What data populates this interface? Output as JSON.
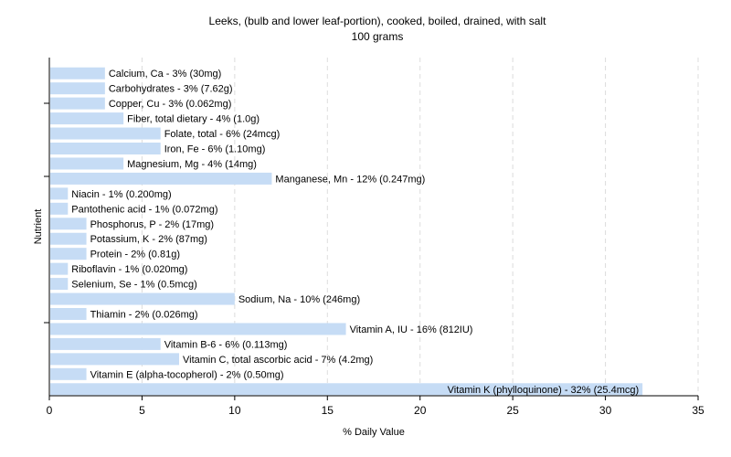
{
  "chart_data": {
    "type": "bar",
    "orientation": "horizontal",
    "title": "Leeks, (bulb and lower leaf-portion), cooked, boiled, drained, with salt",
    "subtitle": "100 grams",
    "xlabel": "% Daily Value",
    "ylabel": "Nutrient",
    "xlim": [
      0,
      35
    ],
    "xticks": [
      0,
      5,
      10,
      15,
      20,
      25,
      30,
      35
    ],
    "grid": true,
    "bar_color": "#c6dcf5",
    "categories": [
      "Calcium, Ca",
      "Carbohydrates",
      "Copper, Cu",
      "Fiber, total dietary",
      "Folate, total",
      "Iron, Fe",
      "Magnesium, Mg",
      "Manganese, Mn",
      "Niacin",
      "Pantothenic acid",
      "Phosphorus, P",
      "Potassium, K",
      "Protein",
      "Riboflavin",
      "Selenium, Se",
      "Sodium, Na",
      "Thiamin",
      "Vitamin A, IU",
      "Vitamin B-6",
      "Vitamin C, total ascorbic acid",
      "Vitamin E (alpha-tocopherol)",
      "Vitamin K (phylloquinone)"
    ],
    "values": [
      3,
      3,
      3,
      4,
      6,
      6,
      4,
      12,
      1,
      1,
      2,
      2,
      2,
      1,
      1,
      10,
      2,
      16,
      6,
      7,
      2,
      32
    ],
    "labels": [
      "Calcium, Ca - 3% (30mg)",
      "Carbohydrates - 3% (7.62g)",
      "Copper, Cu - 3% (0.062mg)",
      "Fiber, total dietary - 4% (1.0g)",
      "Folate, total - 6% (24mcg)",
      "Iron, Fe - 6% (1.10mg)",
      "Magnesium, Mg - 4% (14mg)",
      "Manganese, Mn - 12% (0.247mg)",
      "Niacin - 1% (0.200mg)",
      "Pantothenic acid - 1% (0.072mg)",
      "Phosphorus, P - 2% (17mg)",
      "Potassium, K - 2% (87mg)",
      "Protein - 2% (0.81g)",
      "Riboflavin - 1% (0.020mg)",
      "Selenium, Se - 1% (0.5mcg)",
      "Sodium, Na - 10% (246mg)",
      "Thiamin - 2% (0.026mg)",
      "Vitamin A, IU - 16% (812IU)",
      "Vitamin B-6 - 6% (0.113mg)",
      "Vitamin C, total ascorbic acid - 7% (4.2mg)",
      "Vitamin E (alpha-tocopherol) - 2% (0.50mg)",
      "Vitamin K (phylloquinone) - 32% (25.4mcg)"
    ]
  }
}
